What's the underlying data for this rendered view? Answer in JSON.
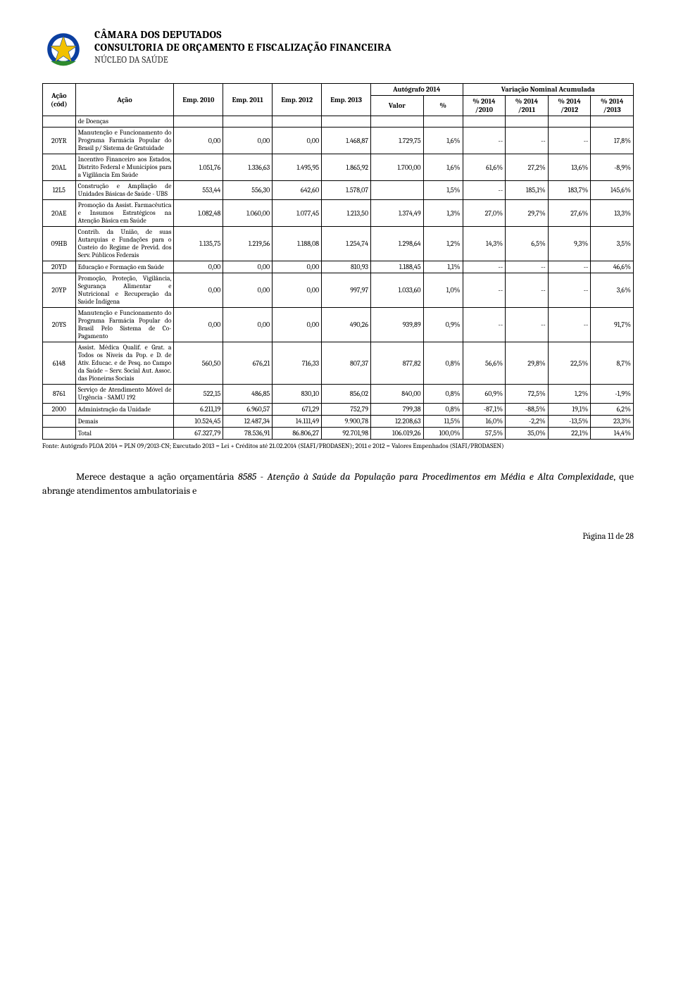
{
  "header": {
    "line1": "CÂMARA DOS DEPUTADOS",
    "line2": "CONSULTORIA DE ORÇAMENTO E FISCALIZAÇÃO FINANCEIRA",
    "line3": "NÚCLEO DA SAÚDE"
  },
  "table": {
    "head": {
      "acao_cod": "Ação (cód)",
      "acao": "Ação",
      "emp2010": "Emp. 2010",
      "emp2011": "Emp. 2011",
      "emp2012": "Emp. 2012",
      "emp2013": "Emp. 2013",
      "autografo": "Autógrafo 2014",
      "valor": "Valor",
      "pct": "%",
      "variacao": "Variação Nominal Acumulada",
      "v2010": "% 2014 /2010",
      "v2011": "% 2014 /2011",
      "v2012": "% 2014 /2012",
      "v2013": "% 2014 /2013"
    },
    "rows": [
      {
        "cod": "",
        "acao": "de Doenças",
        "emp2010": "",
        "emp2011": "",
        "emp2012": "",
        "emp2013": "",
        "valor": "",
        "pct": "",
        "v2010": "",
        "v2011": "",
        "v2012": "",
        "v2013": ""
      },
      {
        "cod": "20YR",
        "acao": "Manutenção e Funcionamento do Programa Farmácia Popular do Brasil p/ Sistema de Gratuidade",
        "emp2010": "0,00",
        "emp2011": "0,00",
        "emp2012": "0,00",
        "emp2013": "1.468,87",
        "valor": "1.729,75",
        "pct": "1,6%",
        "v2010": "--",
        "v2011": "--",
        "v2012": "--",
        "v2013": "17,8%"
      },
      {
        "cod": "20AL",
        "acao": "Incentivo Financeiro aos Estados, Distrito Federal e Municípios para a Vigilância Em Saúde",
        "emp2010": "1.051,76",
        "emp2011": "1.336,63",
        "emp2012": "1.495,95",
        "emp2013": "1.865,92",
        "valor": "1.700,00",
        "pct": "1,6%",
        "v2010": "61,6%",
        "v2011": "27,2%",
        "v2012": "13,6%",
        "v2013": "-8,9%"
      },
      {
        "cod": "12L5",
        "acao": "Construção e Ampliação de Unidades Básicas de Saúde - UBS",
        "emp2010": "553,44",
        "emp2011": "556,30",
        "emp2012": "642,60",
        "emp2013": "1.578,07",
        "valor": "",
        "pct": "1,5%",
        "v2010": "--",
        "v2011": "185,1%",
        "v2012": "183,7%",
        "v2013": "145,6%"
      },
      {
        "cod": "20AE",
        "acao": "Promoção da Assist. Farmacêutica e Insumos Estratégicos na Atenção Básica em Saúde",
        "emp2010": "1.082,48",
        "emp2011": "1.060,00",
        "emp2012": "1.077,45",
        "emp2013": "1.213,50",
        "valor": "1.374,49",
        "pct": "1,3%",
        "v2010": "27,0%",
        "v2011": "29,7%",
        "v2012": "27,6%",
        "v2013": "13,3%"
      },
      {
        "cod": "09HB",
        "acao": "Contrib. da União, de suas Autarquias e Fundações para o Custeio do Regime de Previd. dos Serv. Públicos Federais",
        "emp2010": "1.135,75",
        "emp2011": "1.219,56",
        "emp2012": "1.188,08",
        "emp2013": "1.254,74",
        "valor": "1.298,64",
        "pct": "1,2%",
        "v2010": "14,3%",
        "v2011": "6,5%",
        "v2012": "9,3%",
        "v2013": "3,5%"
      },
      {
        "cod": "20YD",
        "acao": "Educação e Formação em Saúde",
        "emp2010": "0,00",
        "emp2011": "0,00",
        "emp2012": "0,00",
        "emp2013": "810,93",
        "valor": "1.188,45",
        "pct": "1,1%",
        "v2010": "--",
        "v2011": "--",
        "v2012": "--",
        "v2013": "46,6%"
      },
      {
        "cod": "20YP",
        "acao": "Promoção, Proteção, Vigilância, Segurança Alimentar e Nutricional e Recuperação da Saúde Indígena",
        "emp2010": "0,00",
        "emp2011": "0,00",
        "emp2012": "0,00",
        "emp2013": "997,97",
        "valor": "1.033,60",
        "pct": "1,0%",
        "v2010": "--",
        "v2011": "--",
        "v2012": "--",
        "v2013": "3,6%"
      },
      {
        "cod": "20YS",
        "acao": "Manutenção e Funcionamento do Programa Farmácia Popular do Brasil Pelo Sistema de Co-Pagamento",
        "emp2010": "0,00",
        "emp2011": "0,00",
        "emp2012": "0,00",
        "emp2013": "490,26",
        "valor": "939,89",
        "pct": "0,9%",
        "v2010": "--",
        "v2011": "--",
        "v2012": "--",
        "v2013": "91,7%"
      },
      {
        "cod": "6148",
        "acao": "Assist. Médica Qualif. e Grat. a Todos os Níveis da Pop. e D. de Ativ. Educac. e de Pesq. no Campo da Saúde – Serv. Social Aut. Assoc. das Pioneiras Sociais",
        "emp2010": "560,50",
        "emp2011": "676,21",
        "emp2012": "716,33",
        "emp2013": "807,37",
        "valor": "877,82",
        "pct": "0,8%",
        "v2010": "56,6%",
        "v2011": "29,8%",
        "v2012": "22,5%",
        "v2013": "8,7%"
      },
      {
        "cod": "8761",
        "acao": "Serviço de Atendimento Móvel de Urgência - SAMU 192",
        "emp2010": "522,15",
        "emp2011": "486,85",
        "emp2012": "830,10",
        "emp2013": "856,02",
        "valor": "840,00",
        "pct": "0,8%",
        "v2010": "60,9%",
        "v2011": "72,5%",
        "v2012": "1,2%",
        "v2013": "-1,9%"
      },
      {
        "cod": "2000",
        "acao": "Administração da Unidade",
        "emp2010": "6.211,19",
        "emp2011": "6.960,57",
        "emp2012": "671,29",
        "emp2013": "752,79",
        "valor": "799,38",
        "pct": "0,8%",
        "v2010": "-87,1%",
        "v2011": "-88,5%",
        "v2012": "19,1%",
        "v2013": "6,2%"
      },
      {
        "cod": "",
        "acao": "Demais",
        "emp2010": "10.524,45",
        "emp2011": "12.487,34",
        "emp2012": "14.111,49",
        "emp2013": "9.900,78",
        "valor": "12.208,63",
        "pct": "11,5%",
        "v2010": "16,0%",
        "v2011": "-2,2%",
        "v2012": "-13,5%",
        "v2013": "23,3%"
      },
      {
        "cod": "",
        "acao": "Total",
        "emp2010": "67.327,79",
        "emp2011": "78.536,91",
        "emp2012": "86.806,27",
        "emp2013": "92.701,98",
        "valor": "106.019,26",
        "pct": "100,0%",
        "v2010": "57,5%",
        "v2011": "35,0%",
        "v2012": "22,1%",
        "v2013": "14,4%"
      }
    ]
  },
  "fonte": "Fonte: Autógrafo PLOA 2014 = PLN 09/2013-CN; Executado 2013 = Lei + Créditos até 21.02.2014 (SIAFI/PRODASEN); 2011 e 2012 = Valores Empenhados (SIAFI/PRODASEN)",
  "paragraph": {
    "lead": "Merece destaque a ação orçamentária ",
    "italic": "8585 - Atenção à Saúde da População para Procedimentos em Média e Alta Complexidade",
    "tail": ", que abrange atendimentos ambulatoriais e"
  },
  "footer": "Página 11 de 28",
  "style": {
    "text_color": "#000000",
    "border_color": "#000000",
    "background": "#ffffff",
    "header_fontsize_pt": 15,
    "table_fontsize_pt": 10,
    "paragraph_fontsize_pt": 14,
    "footer_fontsize_pt": 12
  }
}
